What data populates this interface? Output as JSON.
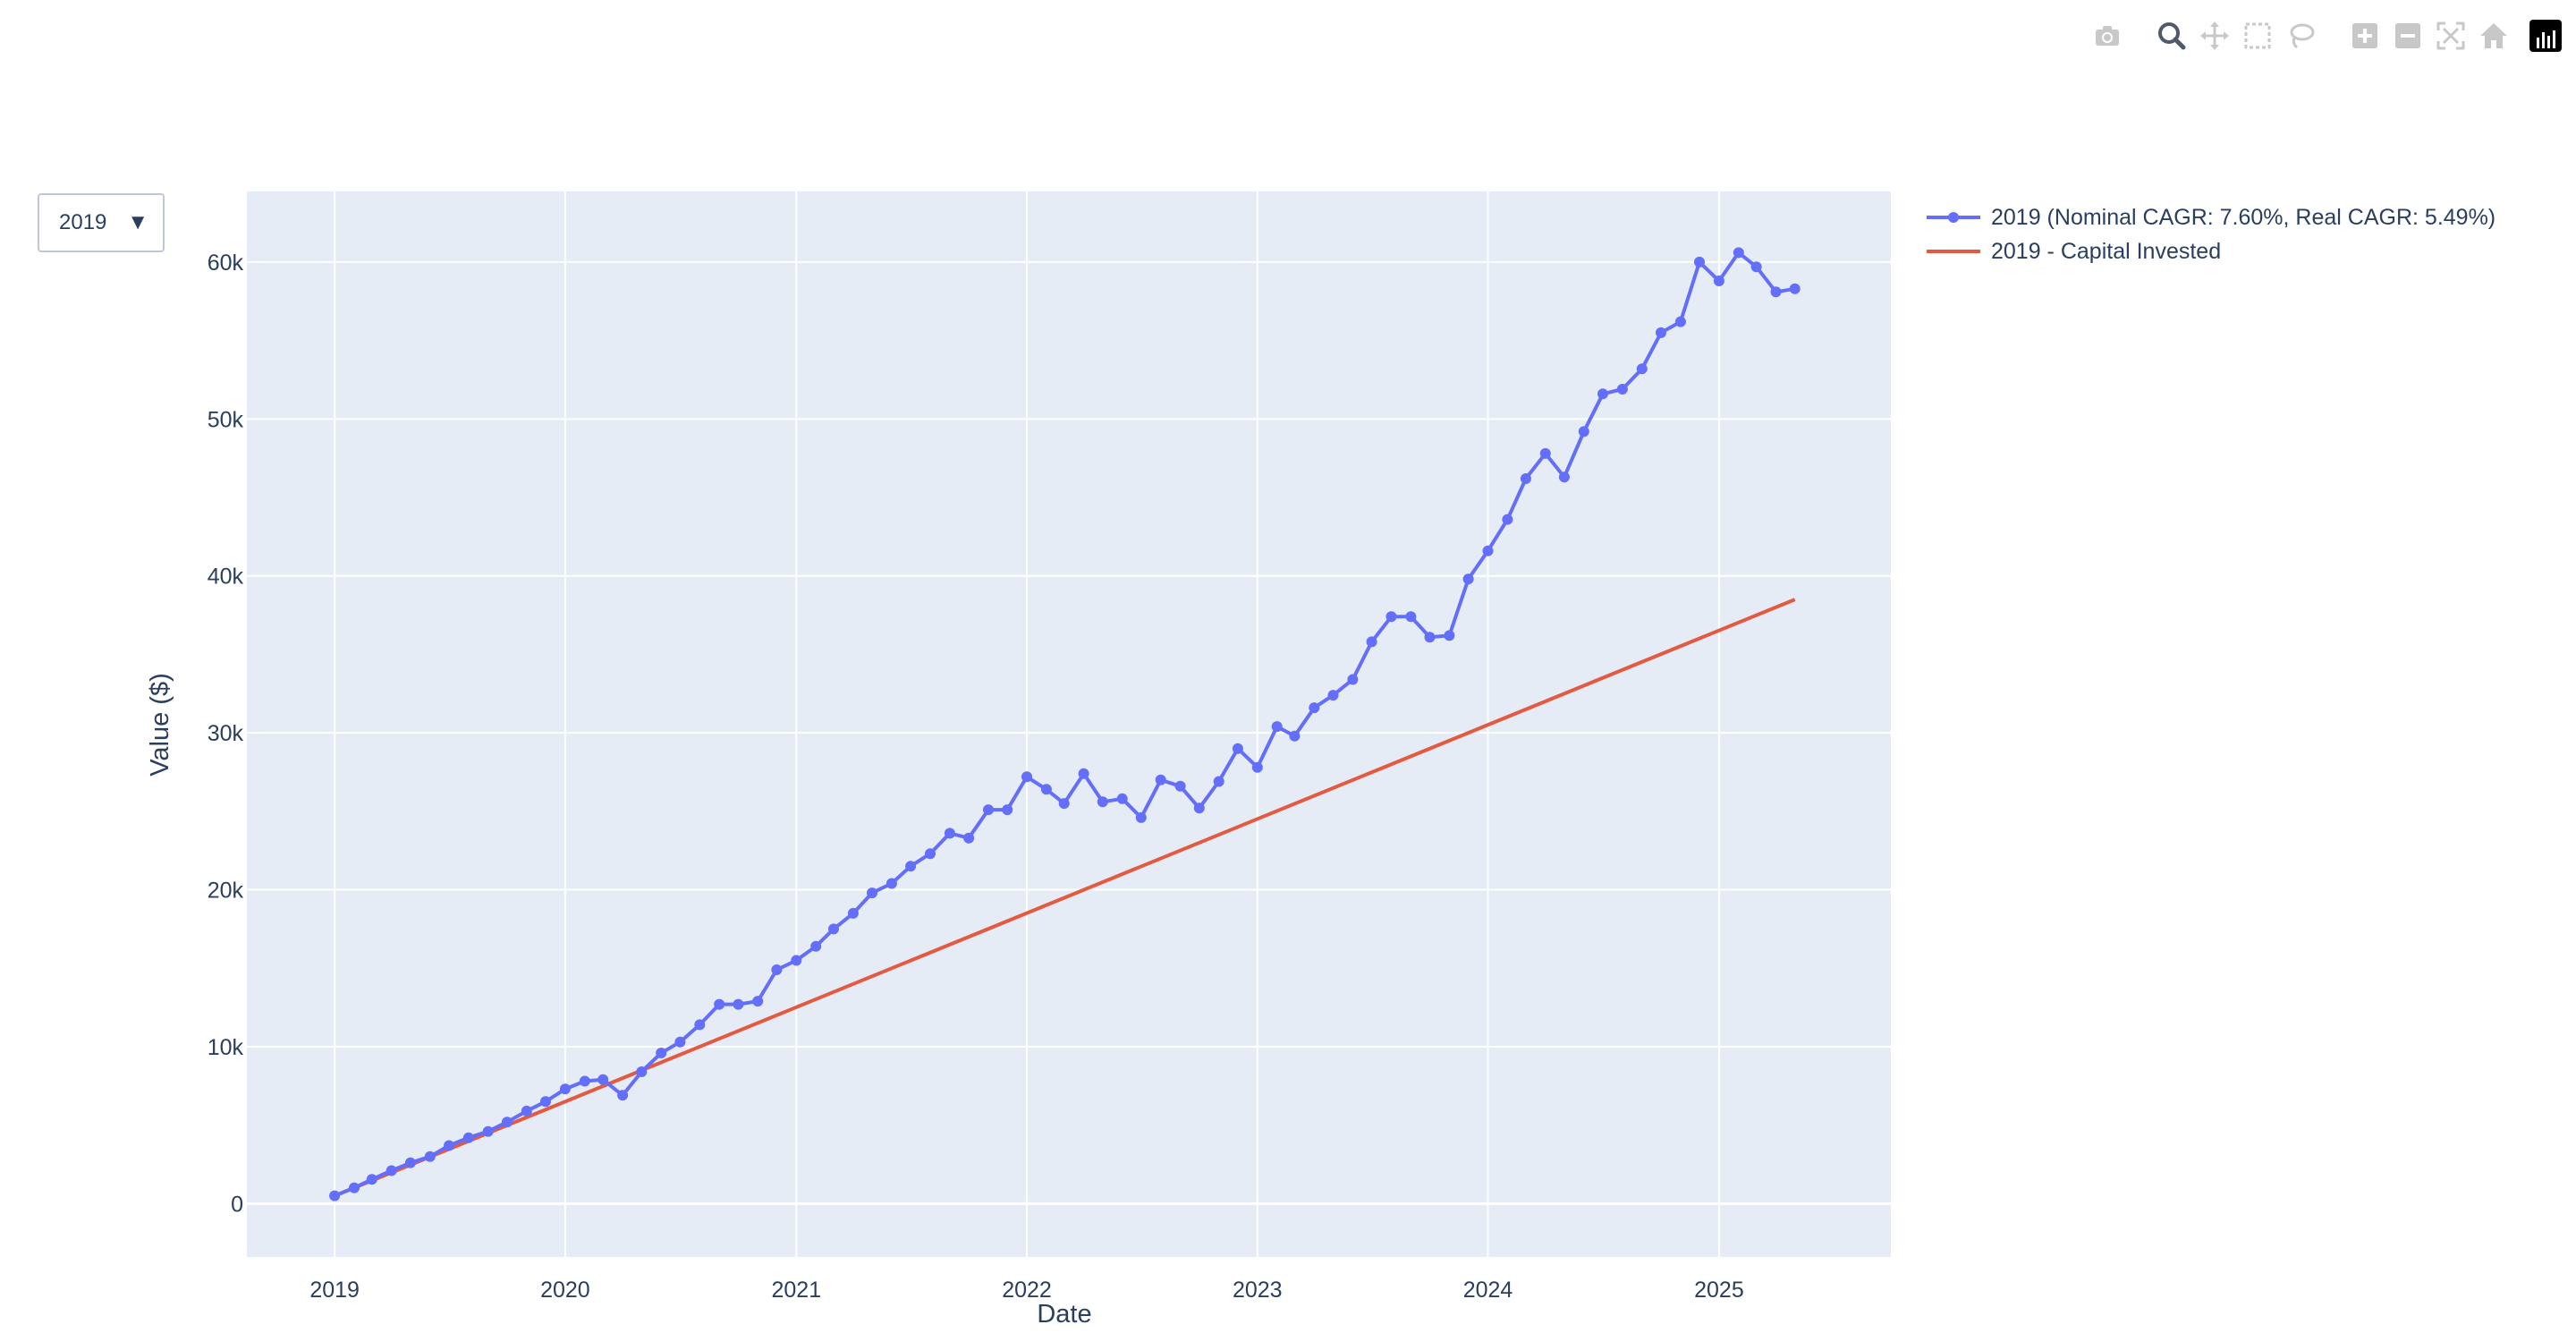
{
  "modebar": {
    "buttons": [
      "camera-icon",
      "zoom-icon",
      "pan-icon",
      "box-select-icon",
      "lasso-select-icon",
      "zoom-in-icon",
      "zoom-out-icon",
      "autoscale-icon",
      "reset-axes-icon",
      "plotly-logo-icon"
    ]
  },
  "dropdown": {
    "selected": "2019",
    "arrow": "▼"
  },
  "colors": {
    "plot_bg": "#e5ecf6",
    "grid": "#ffffff",
    "text": "#2a3f5f",
    "series_portfolio": "#636efa",
    "series_capital": "#e45a41"
  },
  "chart_data": {
    "type": "line",
    "title": "",
    "xlabel": "Date",
    "ylabel": "Value ($)",
    "x_ticks": [
      "2019",
      "2020",
      "2021",
      "2022",
      "2023",
      "2024",
      "2025"
    ],
    "y_ticks": [
      "0",
      "10k",
      "20k",
      "30k",
      "40k",
      "50k",
      "60k"
    ],
    "xlim": [
      "2018-08-15",
      "2025-09-30"
    ],
    "ylim": [
      -3400,
      64500
    ],
    "grid": true,
    "legend_position": "right",
    "series": [
      {
        "name": "2019 (Nominal CAGR: 7.60%, Real CAGR: 5.49%)",
        "mode": "lines+markers",
        "x": [
          "2019-01-01",
          "2019-02-01",
          "2019-03-01",
          "2019-04-01",
          "2019-05-01",
          "2019-06-01",
          "2019-07-01",
          "2019-08-01",
          "2019-09-01",
          "2019-10-01",
          "2019-11-01",
          "2019-12-01",
          "2020-01-01",
          "2020-02-01",
          "2020-03-01",
          "2020-04-01",
          "2020-05-01",
          "2020-06-01",
          "2020-07-01",
          "2020-08-01",
          "2020-09-01",
          "2020-10-01",
          "2020-11-01",
          "2020-12-01",
          "2021-01-01",
          "2021-02-01",
          "2021-03-01",
          "2021-04-01",
          "2021-05-01",
          "2021-06-01",
          "2021-07-01",
          "2021-08-01",
          "2021-09-01",
          "2021-10-01",
          "2021-11-01",
          "2021-12-01",
          "2022-01-01",
          "2022-02-01",
          "2022-03-01",
          "2022-04-01",
          "2022-05-01",
          "2022-06-01",
          "2022-07-01",
          "2022-08-01",
          "2022-09-01",
          "2022-10-01",
          "2022-11-01",
          "2022-12-01",
          "2023-01-01",
          "2023-02-01",
          "2023-03-01",
          "2023-04-01",
          "2023-05-01",
          "2023-06-01",
          "2023-07-01",
          "2023-08-01",
          "2023-09-01",
          "2023-10-01",
          "2023-11-01",
          "2023-12-01",
          "2024-01-01",
          "2024-02-01",
          "2024-03-01",
          "2024-04-01",
          "2024-05-01",
          "2024-06-01",
          "2024-07-01",
          "2024-08-01",
          "2024-09-01",
          "2024-10-01",
          "2024-11-01",
          "2024-12-01",
          "2025-01-01",
          "2025-02-01",
          "2025-03-01",
          "2025-04-01",
          "2025-05-01"
        ],
        "y": [
          500,
          1000,
          1550,
          2100,
          2600,
          3000,
          3700,
          4200,
          4600,
          5200,
          5900,
          6500,
          7300,
          7800,
          7900,
          6900,
          8400,
          9600,
          10300,
          11400,
          12700,
          12700,
          12900,
          14900,
          15500,
          16400,
          17500,
          18500,
          19800,
          20400,
          21500,
          22300,
          23600,
          23300,
          25100,
          25100,
          27200,
          26400,
          25500,
          27400,
          25600,
          25800,
          24600,
          27000,
          26600,
          25200,
          26900,
          29000,
          27800,
          30400,
          29800,
          31600,
          32400,
          33400,
          35800,
          37400,
          37400,
          36100,
          36200,
          39800,
          41600,
          43600,
          46200,
          47800,
          46300,
          49200,
          51600,
          51900,
          53200,
          55500,
          56200,
          60000,
          58800,
          60600,
          59700,
          58100,
          58300
        ]
      },
      {
        "name": "2019 - Capital Invested",
        "mode": "lines",
        "x": [
          "2019-01-01",
          "2025-05-01"
        ],
        "y": [
          500,
          38500
        ]
      }
    ]
  }
}
